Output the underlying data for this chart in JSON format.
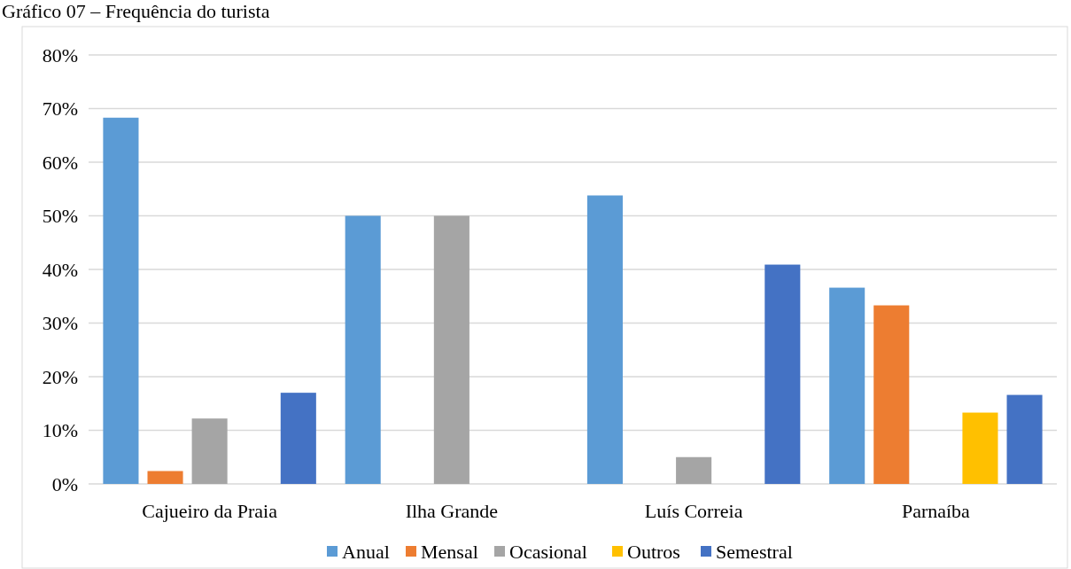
{
  "chart_data": {
    "type": "bar",
    "title": "Gráfico 07 – Frequência do turista",
    "categories": [
      "Cajueiro da Praia",
      "Ilha Grande",
      "Luís Correia",
      "Parnaíba"
    ],
    "series": [
      {
        "name": "Anual",
        "color": "#5b9bd5",
        "values": [
          68.3,
          50,
          53.8,
          36.6
        ]
      },
      {
        "name": "Mensal",
        "color": "#ed7d31",
        "values": [
          2.4,
          null,
          null,
          33.3
        ]
      },
      {
        "name": "Ocasional",
        "color": "#a5a5a5",
        "values": [
          12.2,
          50,
          5.0,
          null
        ]
      },
      {
        "name": "Outros",
        "color": "#ffc000",
        "values": [
          null,
          null,
          null,
          13.3
        ]
      },
      {
        "name": "Semestral",
        "color": "#4472c4",
        "values": [
          17.0,
          null,
          40.9,
          16.6
        ]
      }
    ],
    "ylim": [
      0,
      80
    ],
    "yticks": [
      {
        "value": 0,
        "label": "0%"
      },
      {
        "value": 10,
        "label": "10%"
      },
      {
        "value": 20,
        "label": "20%"
      },
      {
        "value": 30,
        "label": "30%"
      },
      {
        "value": 40,
        "label": "40%"
      },
      {
        "value": 50,
        "label": "50%"
      },
      {
        "value": 60,
        "label": "60%"
      },
      {
        "value": 70,
        "label": "70%"
      },
      {
        "value": 80,
        "label": "80%"
      }
    ],
    "grid": "y",
    "legend": "bottom"
  }
}
